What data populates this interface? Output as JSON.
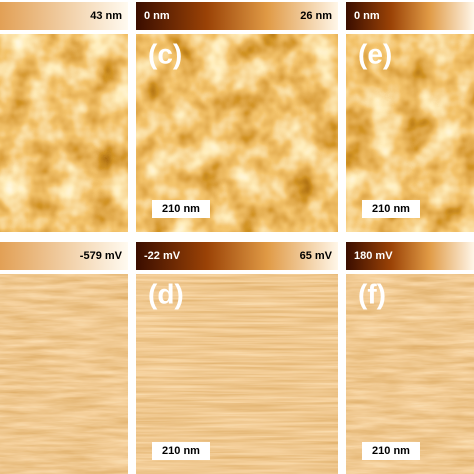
{
  "panels": [
    {
      "colorbar_right": "43 nm"
    },
    {
      "colorbar_left": "0 nm",
      "colorbar_right": "26 nm",
      "label": "(c)",
      "scale_bar": "210 nm"
    },
    {
      "colorbar_left": "0 nm",
      "label": "(e)",
      "scale_bar": "210 nm"
    },
    {
      "colorbar_right": "-579 mV"
    },
    {
      "colorbar_left": "-22 mV",
      "colorbar_right": "65 mV",
      "label": "(d)",
      "scale_bar": "210 nm"
    },
    {
      "colorbar_left": "180 mV",
      "label": "(f)",
      "scale_bar": "210 nm"
    }
  ]
}
